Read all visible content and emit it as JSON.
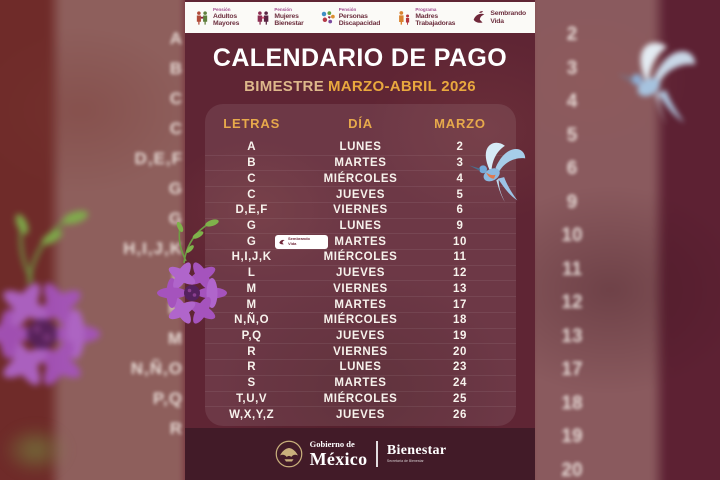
{
  "page": {
    "title": "CALENDARIO DE PAGO",
    "subtitle_prefix": "BIMESTRE",
    "subtitle_highlight": "MARZO-ABRIL 2026"
  },
  "colors": {
    "card_bg": "#5f2534",
    "footer_bg": "#421b28",
    "gold": "#e7a94b",
    "tan": "#ddb88b",
    "white": "#ffffff"
  },
  "header_logos": [
    {
      "program_label": "Pensión",
      "name_line1": "Adultos",
      "name_line2": "Mayores"
    },
    {
      "program_label": "Pensión",
      "name_line1": "Mujeres",
      "name_line2": "Bienestar"
    },
    {
      "program_label": "Pensión",
      "name_line1": "Personas",
      "name_line2": "Discapacidad"
    },
    {
      "program_label": "Programa",
      "name_line1": "Madres",
      "name_line2": "Trabajadoras"
    },
    {
      "program_label": "",
      "name_line1": "Sembrando",
      "name_line2": "Vida"
    }
  ],
  "table": {
    "columns": [
      "LETRAS",
      "DÍA",
      "MARZO"
    ],
    "rows": [
      {
        "letters": "A",
        "day": "LUNES",
        "date": "2"
      },
      {
        "letters": "B",
        "day": "MARTES",
        "date": "3"
      },
      {
        "letters": "C",
        "day": "MIÉRCOLES",
        "date": "4"
      },
      {
        "letters": "C",
        "day": "JUEVES",
        "date": "5"
      },
      {
        "letters": "D,E,F",
        "day": "VIERNES",
        "date": "6"
      },
      {
        "letters": "G",
        "day": "LUNES",
        "date": "9"
      },
      {
        "letters": "G",
        "day": "MARTES",
        "date": "10",
        "badge": true
      },
      {
        "letters": "H,I,J,K",
        "day": "MIÉRCOLES",
        "date": "11"
      },
      {
        "letters": "L",
        "day": "JUEVES",
        "date": "12"
      },
      {
        "letters": "M",
        "day": "VIERNES",
        "date": "13"
      },
      {
        "letters": "M",
        "day": "MARTES",
        "date": "17"
      },
      {
        "letters": "N,Ñ,O",
        "day": "MIÉRCOLES",
        "date": "18"
      },
      {
        "letters": "P,Q",
        "day": "JUEVES",
        "date": "19"
      },
      {
        "letters": "R",
        "day": "VIERNES",
        "date": "20"
      },
      {
        "letters": "R",
        "day": "LUNES",
        "date": "23"
      },
      {
        "letters": "S",
        "day": "MARTES",
        "date": "24"
      },
      {
        "letters": "T,U,V",
        "day": "MIÉRCOLES",
        "date": "25"
      },
      {
        "letters": "W,X,Y,Z",
        "day": "JUEVES",
        "date": "26"
      }
    ]
  },
  "sembrando_badge": {
    "line1": "Sembrando",
    "line2": "Vida"
  },
  "footer": {
    "gobierno_small": "Gobierno de",
    "gobierno_big": "México",
    "brand": "Bienestar",
    "brand_sub": "Secretaría de Bienestar"
  },
  "background": {
    "left_letters": [
      "A",
      "B",
      "C",
      "C",
      "D,E,F",
      "G",
      "G",
      "H,I,J,K",
      "L",
      "M",
      "M",
      "N,Ñ,O",
      "P,Q",
      "R"
    ],
    "right_numbers": [
      "2",
      "3",
      "4",
      "5",
      "6",
      "9",
      "10",
      "11",
      "12",
      "13",
      "17",
      "18",
      "19",
      "20"
    ]
  }
}
